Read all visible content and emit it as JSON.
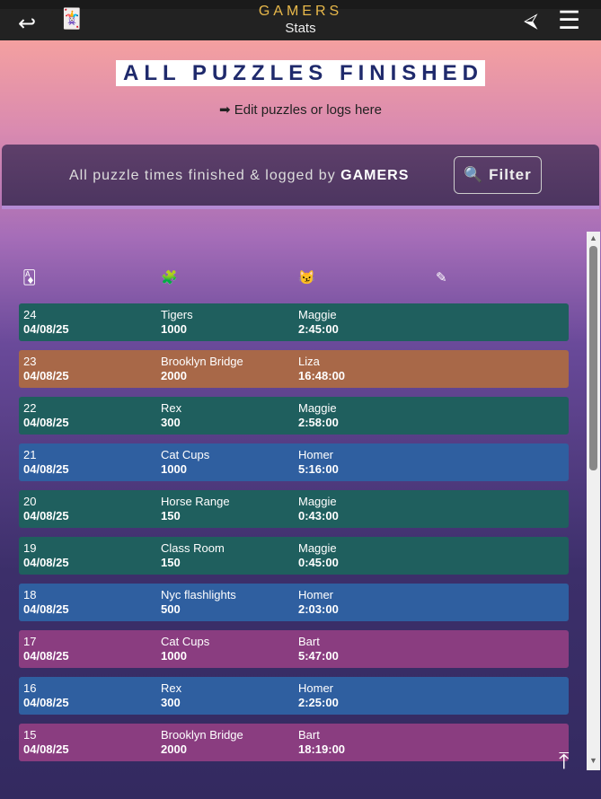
{
  "topbar": {
    "back_icon": "↩",
    "cards_icon": "🃏",
    "brand": "GAMERS",
    "subtitle": "Stats",
    "signin_icon": "⮘",
    "menu_icon": "☰"
  },
  "page": {
    "title": "ALL PUZZLES FINISHED",
    "edit_link": "➡ Edit puzzles or logs here"
  },
  "banner": {
    "text_prefix": "All puzzle times finished & logged by ",
    "text_name": "GAMERS",
    "filter_label": "🔍 Filter"
  },
  "table": {
    "headers": [
      "🃁",
      "🧩",
      "😼",
      "✎"
    ],
    "rows": [
      {
        "num": "24",
        "date": "04/08/25",
        "name": "Tigers",
        "pieces": "1000",
        "who": "Maggie",
        "time": "2:45:00",
        "color": "green"
      },
      {
        "num": "23",
        "date": "04/08/25",
        "name": "Brooklyn Bridge",
        "pieces": "2000",
        "who": "Liza",
        "time": "16:48:00",
        "color": "orange"
      },
      {
        "num": "22",
        "date": "04/08/25",
        "name": "Rex",
        "pieces": "300",
        "who": "Maggie",
        "time": "2:58:00",
        "color": "green"
      },
      {
        "num": "21",
        "date": "04/08/25",
        "name": "Cat Cups",
        "pieces": "1000",
        "who": "Homer",
        "time": "5:16:00",
        "color": "blue"
      },
      {
        "num": "20",
        "date": "04/08/25",
        "name": "Horse Range",
        "pieces": "150",
        "who": "Maggie",
        "time": "0:43:00",
        "color": "green"
      },
      {
        "num": "19",
        "date": "04/08/25",
        "name": "Class Room",
        "pieces": "150",
        "who": "Maggie",
        "time": "0:45:00",
        "color": "green"
      },
      {
        "num": "18",
        "date": "04/08/25",
        "name": "Nyc flashlights",
        "pieces": "500",
        "who": "Homer",
        "time": "2:03:00",
        "color": "blue"
      },
      {
        "num": "17",
        "date": "04/08/25",
        "name": "Cat Cups",
        "pieces": "1000",
        "who": "Bart",
        "time": "5:47:00",
        "color": "pink"
      },
      {
        "num": "16",
        "date": "04/08/25",
        "name": "Rex",
        "pieces": "300",
        "who": "Homer",
        "time": "2:25:00",
        "color": "blue"
      },
      {
        "num": "15",
        "date": "04/08/25",
        "name": "Brooklyn Bridge",
        "pieces": "2000",
        "who": "Bart",
        "time": "18:19:00",
        "color": "pink"
      }
    ]
  },
  "totop_icon": "⤒"
}
